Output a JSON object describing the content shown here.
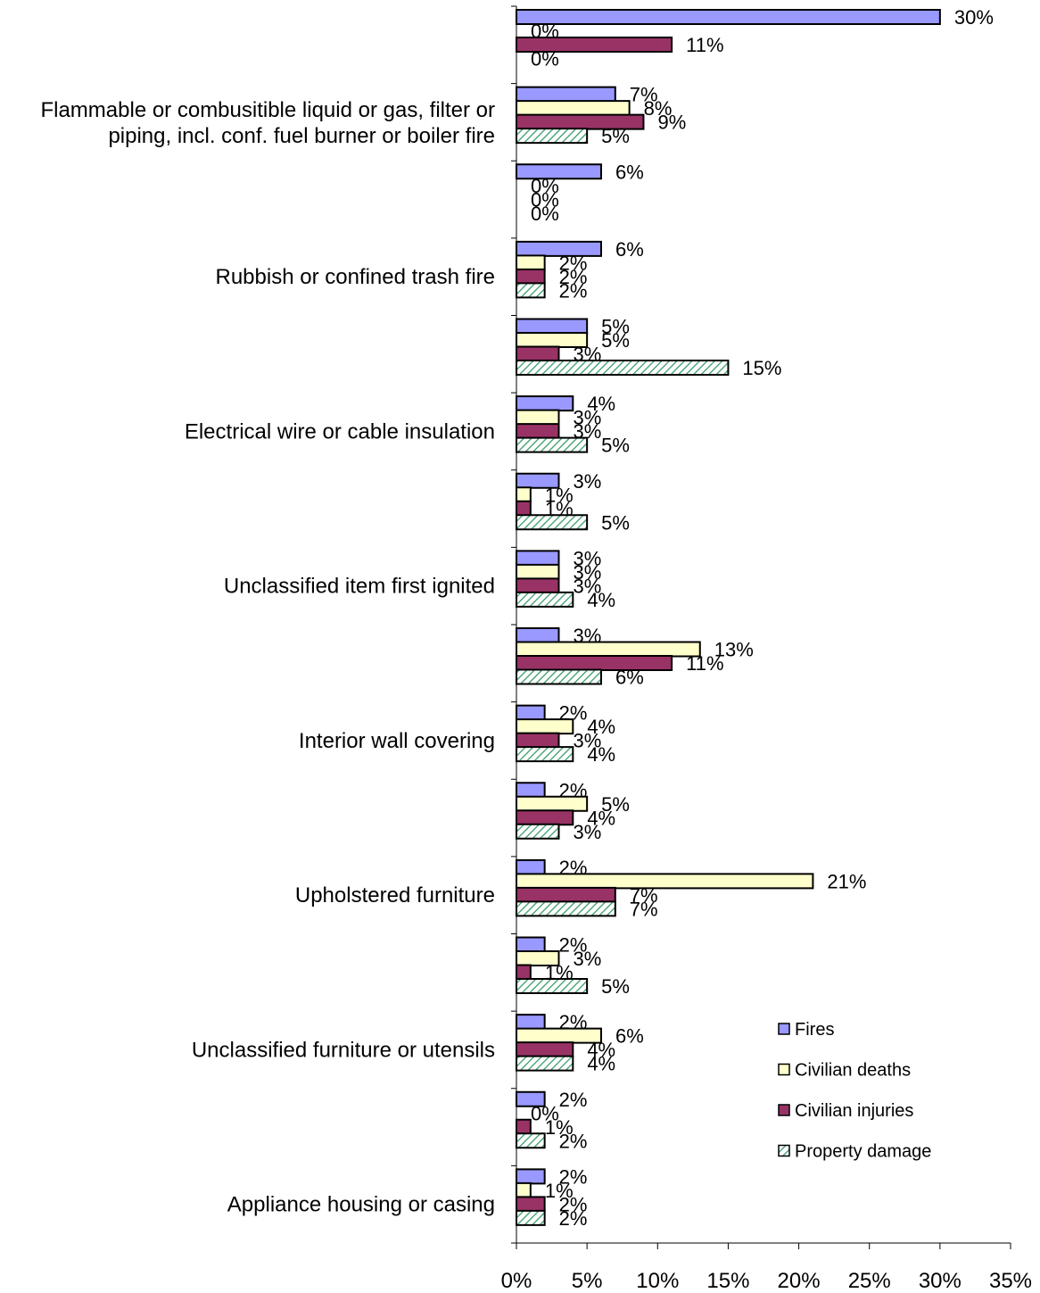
{
  "chart_data": {
    "type": "bar",
    "orientation": "horizontal",
    "title": "",
    "xlabel": "",
    "ylabel": "",
    "xlim": [
      0,
      35
    ],
    "x_ticks": [
      "0%",
      "5%",
      "10%",
      "15%",
      "20%",
      "25%",
      "30%",
      "35%"
    ],
    "legend_position": "bottom-right",
    "categories": [
      "",
      "Flammable or combusitible liquid or gas, filter or piping, incl. conf. fuel burner or boiler fire",
      "",
      "Rubbish or confined trash fire",
      "",
      "Electrical wire or  cable insulation",
      "",
      "Unclassified item first ignited",
      "",
      "Interior wall covering",
      "",
      "Upholstered furniture",
      "",
      "Unclassified furniture or utensils",
      "",
      "Appliance housing or casing"
    ],
    "series": [
      {
        "name": "Fires",
        "color": "#9999ff",
        "pattern": "solid",
        "values": [
          30,
          7,
          6,
          6,
          5,
          4,
          3,
          3,
          3,
          2,
          2,
          2,
          2,
          2,
          2,
          2
        ]
      },
      {
        "name": "Civilian deaths",
        "color": "#ffffcc",
        "pattern": "solid",
        "values": [
          0,
          8,
          0,
          2,
          5,
          3,
          1,
          3,
          13,
          4,
          5,
          21,
          3,
          6,
          0,
          1
        ]
      },
      {
        "name": "Civilian injuries",
        "color": "#993366",
        "pattern": "solid",
        "values": [
          11,
          9,
          0,
          2,
          3,
          3,
          1,
          3,
          11,
          3,
          4,
          7,
          1,
          4,
          1,
          2
        ]
      },
      {
        "name": "Property damage",
        "color": "#ccffee",
        "pattern": "hatch",
        "values": [
          0,
          5,
          0,
          2,
          15,
          5,
          5,
          4,
          6,
          4,
          3,
          7,
          5,
          4,
          2,
          2
        ]
      }
    ]
  }
}
